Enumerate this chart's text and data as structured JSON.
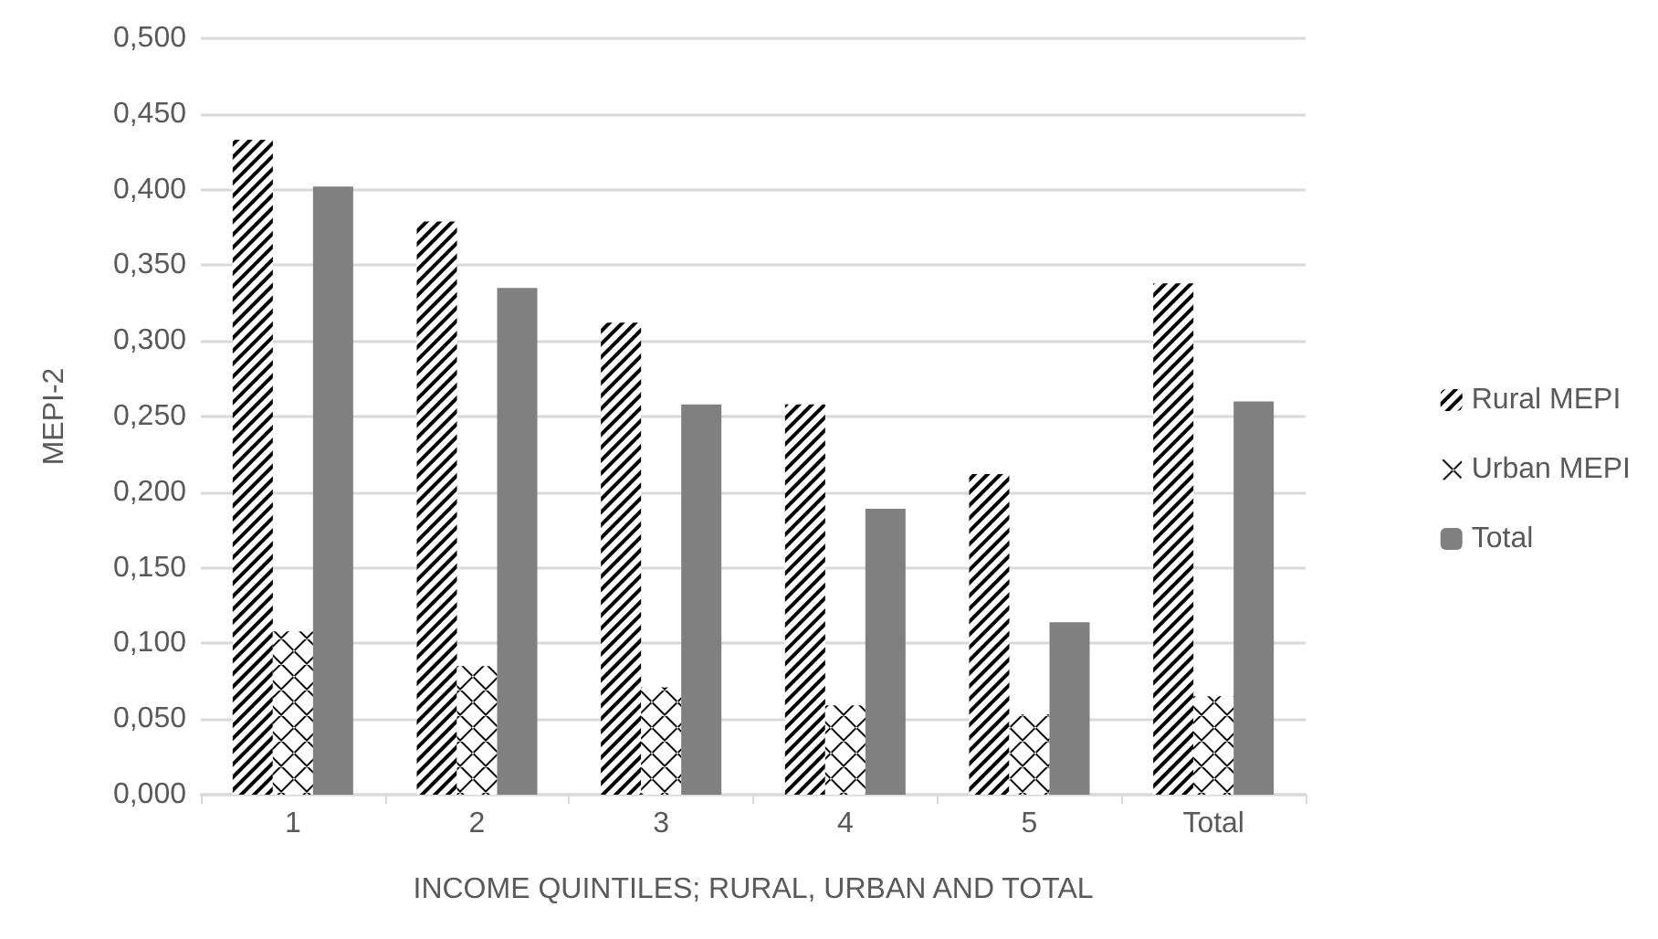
{
  "chart_data": {
    "type": "bar",
    "xlabel": "INCOME QUINTILES; RURAL, URBAN AND TOTAL",
    "ylabel": "MEPI-2",
    "categories": [
      "1",
      "2",
      "3",
      "4",
      "5",
      "Total"
    ],
    "series": [
      {
        "name": "Rural MEPI",
        "color": "#000000",
        "values": [
          0.433,
          0.379,
          0.312,
          0.258,
          0.212,
          0.338
        ]
      },
      {
        "name": "Urban MEPI",
        "color": "#000000",
        "values": [
          0.108,
          0.085,
          0.071,
          0.059,
          0.053,
          0.065
        ]
      },
      {
        "name": "Total",
        "color": "#808080",
        "values": [
          0.402,
          0.335,
          0.258,
          0.189,
          0.114,
          0.26
        ]
      }
    ],
    "ylim": [
      0,
      0.5
    ],
    "yticks": [
      {
        "value": 0,
        "label": "0,000"
      },
      {
        "value": 0.05,
        "label": "0,050"
      },
      {
        "value": 0.1,
        "label": "0,100"
      },
      {
        "value": 0.15,
        "label": "0,150"
      },
      {
        "value": 0.2,
        "label": "0,200"
      },
      {
        "value": 0.25,
        "label": "0,250"
      },
      {
        "value": 0.3,
        "label": "0,300"
      },
      {
        "value": 0.35,
        "label": "0,350"
      },
      {
        "value": 0.4,
        "label": "0,400"
      },
      {
        "value": 0.45,
        "label": "0,450"
      },
      {
        "value": 0.5,
        "label": "0,500"
      }
    ],
    "grid": "y",
    "legend": "right"
  }
}
